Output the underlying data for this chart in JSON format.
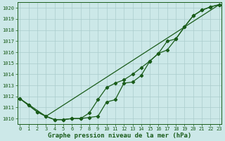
{
  "title": "Graphe pression niveau de la mer (hPa)",
  "bg_color": "#cce8e8",
  "grid_color": "#aacccc",
  "line_color": "#1a5c1a",
  "ylim": [
    1009.5,
    1020.5
  ],
  "xlim": [
    -0.3,
    23.3
  ],
  "yticks": [
    1010,
    1011,
    1012,
    1013,
    1014,
    1015,
    1016,
    1017,
    1018,
    1019,
    1020
  ],
  "xticks": [
    0,
    1,
    2,
    3,
    4,
    5,
    6,
    7,
    8,
    9,
    10,
    11,
    12,
    13,
    14,
    15,
    16,
    17,
    18,
    19,
    20,
    21,
    22,
    23
  ],
  "series_main_x": [
    0,
    1,
    2,
    3,
    4,
    5,
    6,
    7,
    8,
    9,
    10,
    11,
    12,
    13,
    14,
    15,
    16,
    17,
    18,
    19,
    20,
    21,
    22,
    23
  ],
  "series_main_y": [
    1011.8,
    1011.2,
    1010.6,
    1010.2,
    1009.9,
    1009.9,
    1010.0,
    1010.0,
    1010.1,
    1010.2,
    1011.5,
    1011.7,
    1013.2,
    1013.3,
    1013.9,
    1015.2,
    1015.9,
    1016.2,
    1017.2,
    1018.3,
    1019.3,
    1019.8,
    1020.1,
    1020.3
  ],
  "series2_x": [
    0,
    1,
    2,
    3,
    4,
    5,
    6,
    7,
    8,
    9,
    10,
    11,
    12,
    13,
    14,
    15,
    16,
    17,
    18,
    19,
    20,
    21,
    22,
    23
  ],
  "series2_y": [
    1011.8,
    1011.2,
    1010.6,
    1010.2,
    1009.9,
    1009.9,
    1010.0,
    1010.0,
    1010.5,
    1011.7,
    1012.8,
    1013.2,
    1013.5,
    1014.0,
    1014.6,
    1015.2,
    1015.9,
    1017.0,
    1017.2,
    1018.3,
    1019.3,
    1019.8,
    1020.1,
    1020.3
  ],
  "series3_x": [
    0,
    3,
    23
  ],
  "series3_y": [
    1011.8,
    1010.2,
    1020.3
  ],
  "marker_size": 2.2,
  "linewidth": 0.9,
  "title_fontsize": 6.5,
  "tick_fontsize": 5.0,
  "title_color": "#1a5c1a",
  "tick_color": "#1a5c1a",
  "spine_color": "#1a5c1a"
}
